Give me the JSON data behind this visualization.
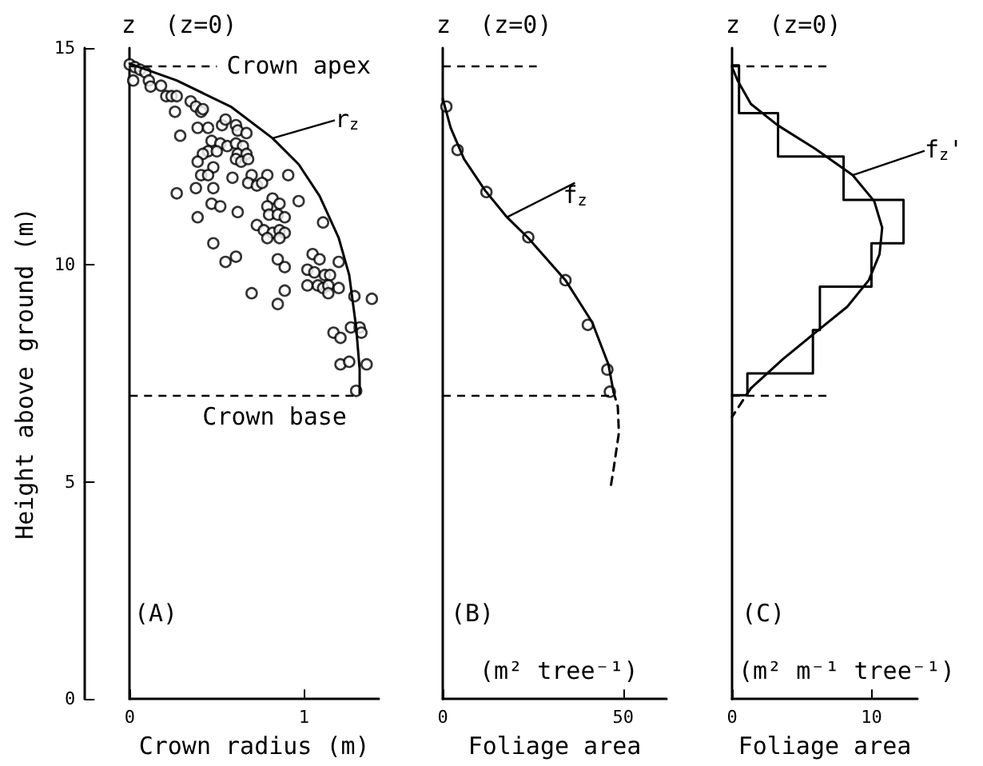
{
  "chart_data": [
    {
      "type": "scatter",
      "xlabel": "Crown radius (m)",
      "ylabel": "Height above ground (m)",
      "xlim": [
        0,
        1.43
      ],
      "xticks": [
        0,
        1
      ],
      "ylim": [
        0,
        15
      ],
      "yticks": [
        0,
        5,
        10,
        15
      ],
      "annotations": [
        "z  (z=0)",
        "(A)"
      ],
      "ref_lines": [
        {
          "axis": "y",
          "value": 14.6,
          "label": "Crown apex",
          "line_style": "dashed"
        },
        {
          "axis": "y",
          "value": 7.0,
          "label": "Crown base",
          "line_style": "dashed"
        }
      ],
      "series": [
        {
          "color": "#000000",
          "marker": "circle",
          "x": [
            0.0,
            0.03,
            0.06,
            0.09,
            0.02,
            0.11,
            0.12,
            0.18,
            0.21,
            0.24,
            0.27,
            0.26,
            0.35,
            0.38,
            0.41,
            0.42,
            0.39,
            0.45,
            0.53,
            0.55,
            0.61,
            0.62,
            0.67,
            0.29,
            0.47,
            0.52,
            0.56,
            0.61,
            0.65,
            0.45,
            0.5,
            0.42,
            0.62,
            0.67,
            0.39,
            0.48,
            0.61,
            0.64,
            0.68,
            0.41,
            0.45,
            0.59,
            0.7,
            0.68,
            0.73,
            0.79,
            0.76,
            0.27,
            0.38,
            0.48,
            0.91,
            0.97,
            0.82,
            0.79,
            0.86,
            0.39,
            0.47,
            0.52,
            0.62,
            0.8,
            0.85,
            0.89,
            0.73,
            0.77,
            0.82,
            0.86,
            0.89,
            0.79,
            0.86,
            1.11,
            0.48,
            0.85,
            0.89,
            0.55,
            0.61,
            1.05,
            1.09,
            1.02,
            1.06,
            1.12,
            1.15,
            1.2,
            1.02,
            1.08,
            1.11,
            1.14,
            1.2,
            1.14,
            0.7,
            0.89,
            0.85,
            1.29,
            1.39,
            1.17,
            1.21,
            1.27,
            1.32,
            1.33,
            1.21,
            1.26,
            1.36,
            1.3
          ],
          "values": [
            14.62,
            14.56,
            14.5,
            14.44,
            14.25,
            14.25,
            14.11,
            14.13,
            13.89,
            13.89,
            13.89,
            13.53,
            13.77,
            13.65,
            13.53,
            13.59,
            13.16,
            13.16,
            13.22,
            13.35,
            13.22,
            13.1,
            13.04,
            12.98,
            12.86,
            12.8,
            12.74,
            12.8,
            12.74,
            12.62,
            12.62,
            12.56,
            12.56,
            12.56,
            12.38,
            12.25,
            12.44,
            12.38,
            12.44,
            12.07,
            12.07,
            12.01,
            12.07,
            11.89,
            11.83,
            12.07,
            11.89,
            11.65,
            11.77,
            11.77,
            12.07,
            11.47,
            11.53,
            11.35,
            11.41,
            11.1,
            11.41,
            11.35,
            11.22,
            11.16,
            11.16,
            11.1,
            10.92,
            10.8,
            10.74,
            10.8,
            10.74,
            10.62,
            10.62,
            10.98,
            10.5,
            10.13,
            9.95,
            10.07,
            10.19,
            10.25,
            10.13,
            9.89,
            9.83,
            9.77,
            9.77,
            10.07,
            9.53,
            9.53,
            9.47,
            9.53,
            9.47,
            9.35,
            9.35,
            9.41,
            9.1,
            9.28,
            9.22,
            8.44,
            8.32,
            8.56,
            8.56,
            8.44,
            7.71,
            7.77,
            7.71,
            7.1
          ]
        },
        {
          "type": "line",
          "name": "r$_{z}$",
          "color": "#000000",
          "marker": "none",
          "line_style": "solid",
          "x": [
            0,
            0.27,
            0.58,
            0.82,
            0.97,
            1.09,
            1.2,
            1.26,
            1.3,
            1.32,
            1.32
          ],
          "values": [
            14.64,
            14.25,
            13.65,
            12.92,
            12.32,
            11.59,
            10.62,
            9.77,
            8.56,
            7.59,
            7.04
          ]
        }
      ]
    },
    {
      "type": "line",
      "xlabel": "Foliage area",
      "xlim": [
        0,
        62
      ],
      "xticks": [
        0,
        50
      ],
      "ylim": [
        0,
        15
      ],
      "tick_labels": "x",
      "annotations": [
        "z  (z=0)",
        "(B)",
        "(m² tree⁻¹)"
      ],
      "ref_lines": [
        {
          "axis": "y",
          "value": 14.6,
          "line_style": "dashed"
        },
        {
          "axis": "y",
          "value": 7.0,
          "line_style": "dashed"
        }
      ],
      "series": [
        {
          "name": "f$_{z}$",
          "color": "#000000",
          "marker": "none",
          "line_style": "solid",
          "x": [
            0,
            2.2,
            5.9,
            11.8,
            17.8,
            23.7,
            34.0,
            41.4,
            45.9,
            47.3
          ],
          "values": [
            13.83,
            13.16,
            12.44,
            11.71,
            11.1,
            10.62,
            9.65,
            8.68,
            7.71,
            7.08
          ]
        },
        {
          "type": "scatter",
          "color": "#000000",
          "marker": "circle",
          "x": [
            1.0,
            4.1,
            12.1,
            23.7,
            34.0,
            40.2,
            45.6,
            46.3
          ],
          "values": [
            13.65,
            12.65,
            11.68,
            10.64,
            9.65,
            8.62,
            7.59,
            7.08
          ]
        },
        {
          "color": "#000000",
          "marker": "none",
          "line_style": "dashed",
          "x": [
            47.3,
            48.5,
            48.8,
            47.3,
            46.6
          ],
          "values": [
            7.08,
            6.74,
            6.13,
            5.28,
            4.92
          ]
        }
      ]
    },
    {
      "type": "line",
      "xlabel": "Foliage area",
      "xlim": [
        0,
        13.3
      ],
      "xticks": [
        0,
        10
      ],
      "ylim": [
        0,
        15
      ],
      "tick_labels": "x",
      "annotations": [
        "z  (z=0)",
        "(C)",
        "(m² m⁻¹ tree⁻¹)"
      ],
      "ref_lines": [
        {
          "axis": "y",
          "value": 14.6,
          "line_style": "dashed"
        },
        {
          "axis": "y",
          "value": 7.0,
          "line_style": "dashed"
        }
      ],
      "series": [
        {
          "color": "#000000",
          "marker": "none",
          "line_style": "solid",
          "x": [
            0,
            1.1,
            1.1,
            5.8,
            5.8,
            6.3,
            6.3,
            10.0,
            10.0,
            12.3,
            12.3,
            8.0,
            8.0,
            3.3,
            3.3,
            0.5,
            0.5,
            0
          ],
          "values": [
            7.0,
            7.0,
            7.5,
            7.5,
            8.5,
            8.5,
            9.5,
            9.5,
            10.5,
            10.5,
            11.5,
            11.5,
            12.5,
            12.5,
            13.5,
            13.5,
            14.6,
            14.6
          ]
        },
        {
          "name": "f$_{z}$'",
          "color": "#000000",
          "marker": "none",
          "line_style": "solid",
          "x": [
            0,
            0.4,
            1.35,
            3.27,
            5.96,
            8.65,
            10.2,
            10.77,
            10.58,
            9.81,
            8.27,
            5.96,
            3.65,
            1.35
          ],
          "values": [
            14.56,
            14.25,
            13.71,
            13.22,
            12.68,
            12.07,
            11.47,
            10.86,
            10.25,
            9.65,
            9.04,
            8.44,
            7.83,
            7.16
          ]
        },
        {
          "color": "#000000",
          "marker": "none",
          "line_style": "dashed",
          "x": [
            1.35,
            0
          ],
          "values": [
            7.16,
            6.5
          ]
        }
      ]
    }
  ]
}
